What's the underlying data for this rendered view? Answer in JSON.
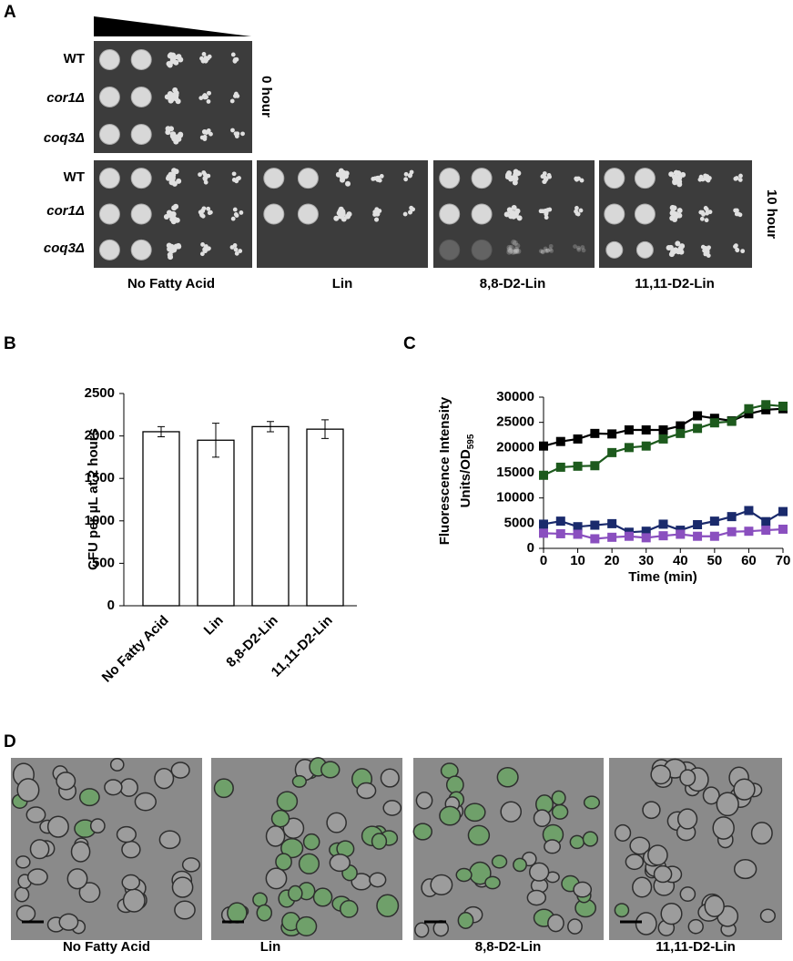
{
  "panel_labels": [
    "A",
    "B",
    "C",
    "D"
  ],
  "panel_a": {
    "strains_0h": [
      "WT",
      "cor1Δ",
      "coq3Δ"
    ],
    "time_0": "0 hour",
    "strains_10h": [
      "WT",
      "cor1Δ",
      "coq3Δ"
    ],
    "time_10": "10 hour",
    "conditions": [
      "No Fatty Acid",
      "Lin",
      "8,8-D2-Lin",
      "11,11-D2-Lin"
    ]
  },
  "chart_data": [
    {
      "type": "bar",
      "ylabel": "CFU per µL at 2 hours",
      "categories": [
        "No Fatty Acid",
        "Lin",
        "8,8-D2-Lin",
        "11,11-D2-Lin"
      ],
      "values": [
        2050,
        1950,
        2110,
        2080
      ],
      "errors": [
        60,
        200,
        60,
        110
      ],
      "color": "#ffffff",
      "ylim": [
        0,
        2500
      ],
      "yticks": [
        0,
        500,
        1000,
        1500,
        2000,
        2500
      ]
    },
    {
      "type": "line",
      "xlabel": "Time (min)",
      "ylabel": "Fluorescence Intensity",
      "ylabel_units": {
        "text": "Units/OD",
        "subscript": "595"
      },
      "x": [
        0,
        5,
        10,
        15,
        20,
        25,
        30,
        35,
        40,
        45,
        50,
        55,
        60,
        65,
        70
      ],
      "xlim": [
        0,
        70
      ],
      "xticks": [
        0,
        10,
        20,
        30,
        40,
        50,
        60,
        70
      ],
      "ylim": [
        0,
        30000
      ],
      "yticks": [
        0,
        5000,
        10000,
        15000,
        20000,
        25000,
        30000
      ],
      "series": [
        {
          "color": "#000000",
          "values": [
            20300,
            21200,
            21700,
            22800,
            22700,
            23500,
            23500,
            23500,
            24300,
            26300,
            25800,
            25300,
            26700,
            27500,
            27700
          ]
        },
        {
          "color": "#1d5a1d",
          "values": [
            14500,
            16100,
            16300,
            16400,
            19000,
            20000,
            20300,
            21700,
            22800,
            23800,
            24900,
            25200,
            27700,
            28500,
            28200
          ]
        },
        {
          "color": "#1a2a6c",
          "values": [
            4800,
            5400,
            4300,
            4600,
            4900,
            3200,
            3400,
            4800,
            3600,
            4700,
            5400,
            6300,
            7500,
            5300,
            7300
          ]
        },
        {
          "color": "#8a4fbf",
          "values": [
            3000,
            2900,
            2800,
            1900,
            2200,
            2400,
            2100,
            2500,
            2800,
            2400,
            2400,
            3300,
            3400,
            3600,
            3800
          ]
        }
      ]
    }
  ],
  "panel_d": {
    "conditions": [
      "No Fatty Acid",
      "Lin",
      "8,8-D2-Lin",
      "11,11-D2-Lin"
    ]
  }
}
